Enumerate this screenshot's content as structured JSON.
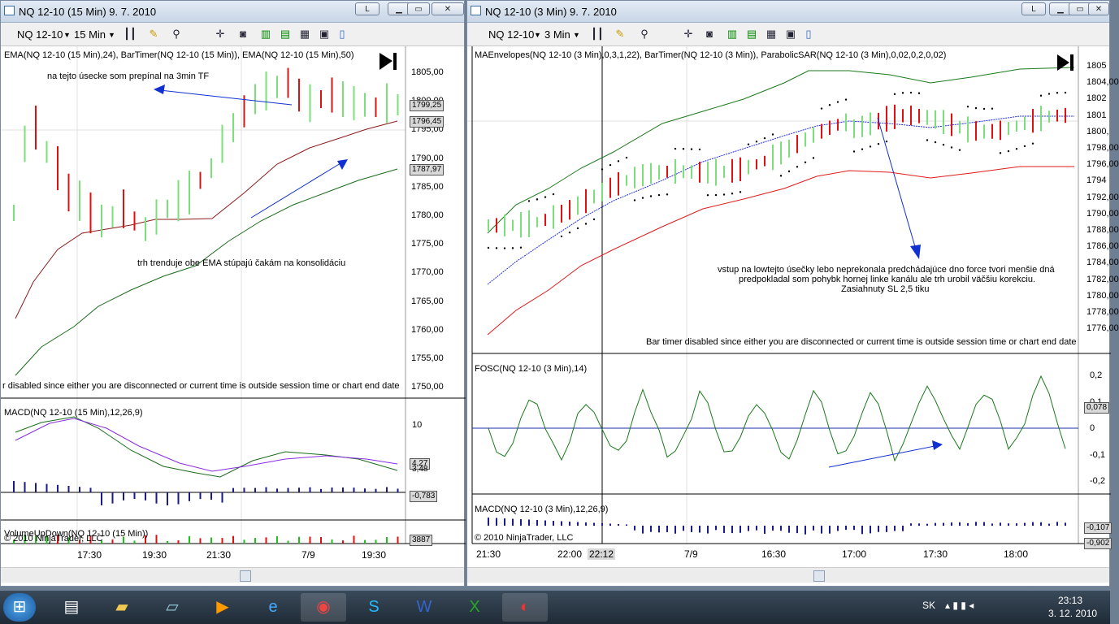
{
  "taskbar": {
    "apps": [
      "start-orb",
      "windows-explorer-icon",
      "file-folder-icon",
      "notepad-icon",
      "media-player-icon",
      "internet-explorer-icon",
      "chrome-icon",
      "skype-icon",
      "word-icon",
      "excel-icon",
      "ninjatrader-icon"
    ],
    "lang": "SK",
    "time": "23:13",
    "date": "3. 12. 2010"
  },
  "left": {
    "title": "NQ 12-10 (15 Min)  9. 7. 2010",
    "btn_l": "L",
    "symbol": "NQ 12-10",
    "interval": "15 Min",
    "price_label": "EMA(NQ 12-10 (15 Min),24), BarTimer(NQ 12-10 (15 Min)), EMA(NQ 12-10 (15 Min),50)",
    "note1": "na tejto úsecke som prepínal na 3min TF",
    "note2": "trh trenduje obe EMA stúpajú čakám na konsolidáciu",
    "bartimer": "r disabled since either you are disconnected or current time is outside session time or chart end date",
    "y_labels": [
      "1805,00",
      "1800,00",
      "1795,00",
      "1790,00",
      "1785,00",
      "1780,00",
      "1775,00",
      "1770,00",
      "1765,00",
      "1760,00",
      "1755,00",
      "1750,00"
    ],
    "tags": [
      "1799,25",
      "1796,45",
      "1787,97"
    ],
    "macd_label": "MACD(NQ 12-10 (15 Min),12,26,9)",
    "macd_y": "10",
    "macd_tags": [
      "4,27",
      "3,48",
      "-0,783"
    ],
    "vol_label": "VolumeUpDown(NQ 12-10 (15 Min))",
    "vol_tag": "3887",
    "copyright": "© 2010 NinjaTrader, LLC",
    "times": [
      "17:30",
      "19:30",
      "21:30",
      "7/9",
      "19:30"
    ]
  },
  "right": {
    "title": "NQ 12-10 (3 Min)  9. 7. 2010",
    "btn_l": "L",
    "symbol": "NQ 12-10",
    "interval": "3 Min",
    "price_label": "MAEnvelopes(NQ 12-10 (3 Min),0,3,1,22), BarTimer(NQ 12-10 (3 Min)), ParabolicSAR(NQ 12-10 (3 Min),0,02,0,2,0,02)",
    "note1": "vstup na lowtejto úsečky lebo neprekonala predchádajúce dno force tvori menšie dná",
    "note2": "predpokladal som pohybk hornej linke kanálu ale trh urobil väčšiu korekciu.",
    "note3": "Zasiahnuty SL 2,5 tiku",
    "bartimer": "Bar timer disabled since either you are disconnected or current time is outside session time or chart end date",
    "y_labels": [
      "1805",
      "1804,00",
      "1802",
      "1801",
      "1800,",
      "1798,00",
      "1796,00",
      "1794",
      "1792,00",
      "1790,00",
      "1788,00",
      "1786,00",
      "1784,00",
      "1782,00",
      "1780,00",
      "1778,00",
      "1776,00"
    ],
    "fosc_label": "FOSC(NQ 12-10 (3 Min),14)",
    "fosc_y": [
      "0,2",
      "0,1",
      "0",
      "-0,1",
      "-0,2"
    ],
    "fosc_tag": "0,078",
    "macd_label": "MACD(NQ 12-10 (3 Min),12,26,9)",
    "macd_tags": [
      "-0,107",
      "-0,902"
    ],
    "copyright": "© 2010 NinjaTrader, LLC",
    "times": [
      "21:30",
      "22:00",
      "22:12",
      "7/9",
      "16:30",
      "17:00",
      "17:30",
      "18:00"
    ]
  }
}
